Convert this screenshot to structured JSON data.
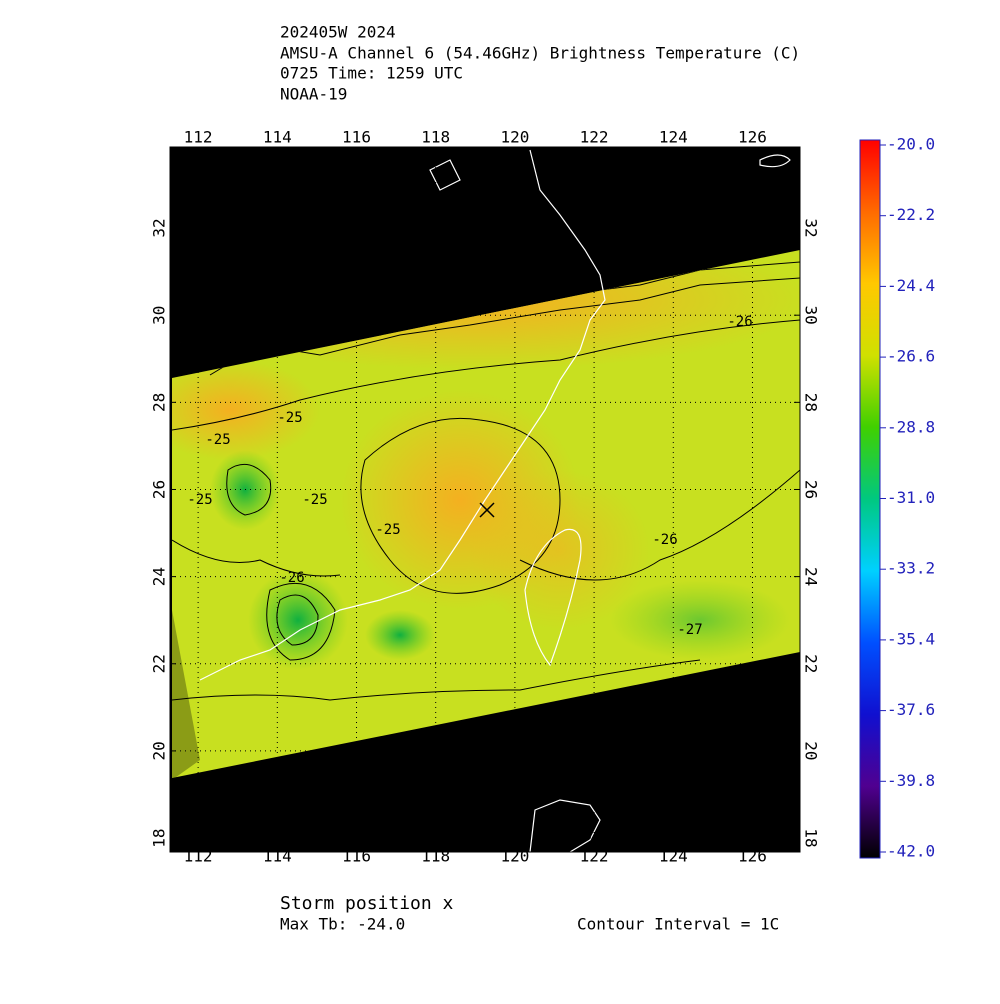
{
  "header": {
    "lines": [
      "202405W 2024",
      "AMSU-A Channel 6 (54.46GHz) Brightness Temperature (C)",
      "0725 Time: 1259 UTC",
      "NOAA-19"
    ]
  },
  "map": {
    "lonlim": [
      111.29,
      127.2
    ],
    "latlim": [
      17.68,
      33.86
    ],
    "lon_ticks": [
      112,
      114,
      116,
      118,
      120,
      122,
      124,
      126
    ],
    "lat_ticks": [
      18,
      20,
      22,
      24,
      26,
      28,
      30,
      32
    ],
    "contour_labels": [
      "-25",
      "-25",
      "-25",
      "-25",
      "-25",
      "-26",
      "-26",
      "-26",
      "-27"
    ]
  },
  "colorbar": {
    "range": [
      -42,
      -20
    ],
    "ticks": [
      {
        "value": -20,
        "label": "-20.0"
      },
      {
        "value": -22.2,
        "label": "-22.2"
      },
      {
        "value": -24.4,
        "label": "-24.4"
      },
      {
        "value": -26.6,
        "label": "-26.6"
      },
      {
        "value": -28.8,
        "label": "-28.8"
      },
      {
        "value": -31,
        "label": "-31.0"
      },
      {
        "value": -33.2,
        "label": "-33.2"
      },
      {
        "value": -35.4,
        "label": "-35.4"
      },
      {
        "value": -37.6,
        "label": "-37.6"
      },
      {
        "value": -39.8,
        "label": "-39.8"
      },
      {
        "value": -42,
        "label": "-42.0"
      }
    ]
  },
  "footer": {
    "storm": "Storm position x",
    "max_tb": "Max Tb: -24.0",
    "interval": "Contour Interval = 1C"
  }
}
